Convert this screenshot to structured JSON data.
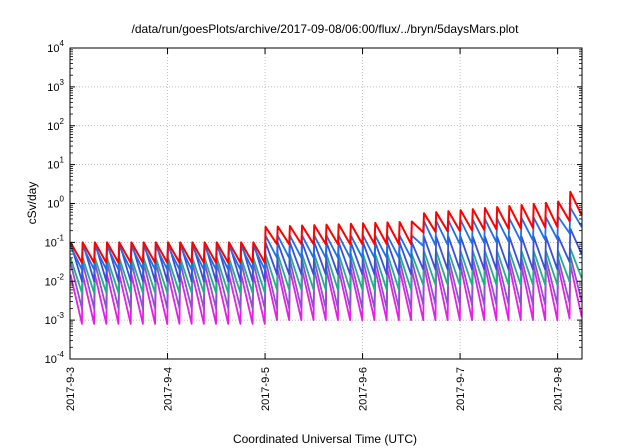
{
  "chart_data": {
    "type": "line",
    "title": "/data/run/goesPlots/archive/2017-09-08/06:00/flux/../bryn/5daysMars.plot",
    "xlabel": "Coordinated Universal Time (UTC)",
    "ylabel": "cSv/day",
    "y_scale": "log",
    "ylim": [
      "1e-4",
      "1e4"
    ],
    "xlim": [
      "2017-09-03T00:00",
      "2017-09-08T06:00"
    ],
    "y_ticks": [
      {
        "base": "10",
        "exp": "-4"
      },
      {
        "base": "10",
        "exp": "-3"
      },
      {
        "base": "10",
        "exp": "-2"
      },
      {
        "base": "10",
        "exp": "-1"
      },
      {
        "base": "10",
        "exp": "0"
      },
      {
        "base": "10",
        "exp": "1"
      },
      {
        "base": "10",
        "exp": "2"
      },
      {
        "base": "10",
        "exp": "3"
      },
      {
        "base": "10",
        "exp": "4"
      }
    ],
    "x_ticks": [
      "2017-9-3",
      "2017-9-4",
      "2017-9-5",
      "2017-9-6",
      "2017-9-7",
      "2017-9-8"
    ],
    "grid": true,
    "pattern": "sawtooth, period 0.125 day (3 h)",
    "series": [
      {
        "color": "#ff0000",
        "x": [
          "2017-09-03",
          "2017-09-05",
          "2017-09-05",
          "2017-09-06 14:00",
          "2017-09-06 14:00",
          "2017-09-08 00:00",
          "2017-09-08 06:00"
        ],
        "peak": [
          0.1,
          0.1,
          0.25,
          0.35,
          0.55,
          1.1,
          3.5
        ],
        "trough": [
          0.03,
          0.03,
          0.09,
          0.09,
          0.18,
          0.25,
          0.5
        ]
      },
      {
        "color": "#1f6fe8",
        "x": [
          "2017-09-03",
          "2017-09-05",
          "2017-09-05",
          "2017-09-06 14:00",
          "2017-09-06 14:00",
          "2017-09-08 00:00",
          "2017-09-08 06:00"
        ],
        "peak": [
          0.08,
          0.08,
          0.15,
          0.15,
          0.35,
          0.45,
          1.3
        ],
        "trough": [
          0.02,
          0.02,
          0.04,
          0.04,
          0.08,
          0.12,
          0.25
        ]
      },
      {
        "color": "#3a4fd8",
        "x": [
          "2017-09-03",
          "2017-09-05",
          "2017-09-05",
          "2017-09-06 14:00",
          "2017-09-06 14:00",
          "2017-09-08 00:00",
          "2017-09-08 06:00"
        ],
        "peak": [
          0.1,
          0.1,
          0.1,
          0.1,
          0.14,
          0.14,
          0.35
        ],
        "trough": [
          0.01,
          0.01,
          0.015,
          0.015,
          0.02,
          0.02,
          0.05
        ]
      },
      {
        "color": "#1fb08a",
        "x": [
          "2017-09-03",
          "2017-09-05",
          "2017-09-05",
          "2017-09-06 14:00",
          "2017-09-06 14:00",
          "2017-09-08 00:00",
          "2017-09-08 06:00"
        ],
        "peak": [
          0.04,
          0.04,
          0.05,
          0.05,
          0.06,
          0.06,
          0.08
        ],
        "trough": [
          0.005,
          0.005,
          0.006,
          0.006,
          0.008,
          0.008,
          0.012
        ]
      },
      {
        "color": "#9050d0",
        "x": [
          "2017-09-03",
          "2017-09-05",
          "2017-09-05",
          "2017-09-06 14:00",
          "2017-09-06 14:00",
          "2017-09-08 00:00",
          "2017-09-08 06:00"
        ],
        "peak": [
          0.03,
          0.03,
          0.035,
          0.035,
          0.04,
          0.04,
          0.05
        ],
        "trough": [
          0.002,
          0.002,
          0.002,
          0.002,
          0.0025,
          0.0025,
          0.003
        ]
      },
      {
        "color": "#e61ee6",
        "x": [
          "2017-09-03",
          "2017-09-05",
          "2017-09-05",
          "2017-09-06 14:00",
          "2017-09-06 14:00",
          "2017-09-08 00:00",
          "2017-09-08 06:00"
        ],
        "peak": [
          0.015,
          0.015,
          0.02,
          0.02,
          0.025,
          0.025,
          0.03
        ],
        "trough": [
          0.0008,
          0.0008,
          0.001,
          0.001,
          0.001,
          0.001,
          0.0012
        ]
      }
    ]
  }
}
